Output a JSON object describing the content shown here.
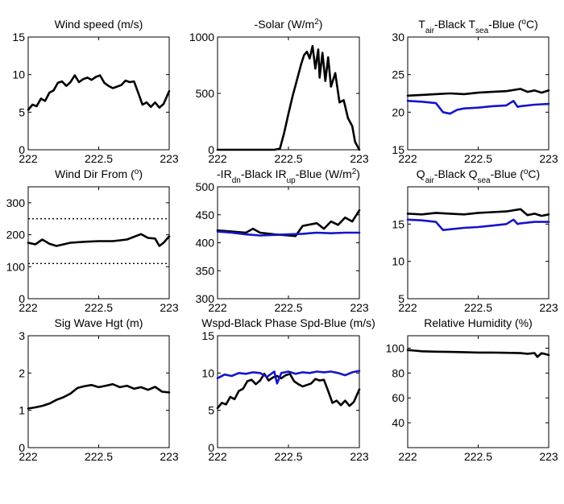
{
  "colors": {
    "black": "#000000",
    "blue": "#1515c8"
  },
  "chart_data": [
    {
      "type": "line",
      "title": "Wind speed (m/s)",
      "xlim": [
        222,
        223
      ],
      "ylim": [
        0,
        15
      ],
      "xticks": [
        "222",
        "222.5",
        "223"
      ],
      "yticks": [
        "0",
        "5",
        "10",
        "15"
      ],
      "series": [
        {
          "color": "black",
          "x": [
            222.0,
            222.03,
            222.06,
            222.09,
            222.12,
            222.15,
            222.18,
            222.21,
            222.24,
            222.27,
            222.3,
            222.33,
            222.36,
            222.39,
            222.42,
            222.45,
            222.48,
            222.51,
            222.54,
            222.57,
            222.6,
            222.63,
            222.66,
            222.69,
            222.72,
            222.75,
            222.78,
            222.81,
            222.84,
            222.87,
            222.9,
            222.93,
            222.96,
            223.0
          ],
          "y": [
            5.3,
            6.0,
            5.8,
            6.8,
            6.5,
            7.6,
            7.9,
            8.9,
            9.1,
            8.5,
            9.0,
            9.9,
            9.0,
            9.4,
            9.6,
            9.3,
            9.7,
            9.9,
            8.9,
            8.5,
            8.2,
            8.4,
            8.6,
            9.2,
            9.0,
            9.1,
            7.6,
            6.0,
            6.3,
            5.7,
            6.3,
            5.6,
            6.1,
            7.8
          ]
        }
      ]
    },
    {
      "type": "line",
      "title": "-Solar (W/m",
      "title_sup": "2",
      "title_tail": ")",
      "xlim": [
        222,
        223
      ],
      "ylim": [
        0,
        1000
      ],
      "xticks": [
        "222",
        "222.5",
        "223"
      ],
      "yticks": [
        "0",
        "500",
        "1000"
      ],
      "series": [
        {
          "color": "black",
          "x": [
            222.0,
            222.3,
            222.4,
            222.44,
            222.47,
            222.5,
            222.53,
            222.56,
            222.59,
            222.61,
            222.63,
            222.65,
            222.67,
            222.69,
            222.71,
            222.72,
            222.74,
            222.76,
            222.78,
            222.8,
            222.83,
            222.86,
            222.89,
            222.92,
            222.95,
            222.97,
            223.0
          ],
          "y": [
            0,
            0,
            0,
            10,
            150,
            320,
            480,
            620,
            760,
            840,
            870,
            810,
            920,
            720,
            890,
            640,
            860,
            610,
            820,
            560,
            680,
            420,
            440,
            280,
            210,
            70,
            0
          ]
        }
      ]
    },
    {
      "type": "line",
      "title": "T",
      "title_parts": [
        "air",
        "-Black  T",
        "sea",
        "-Blue (",
        "o",
        "C)"
      ],
      "xlim": [
        222,
        223
      ],
      "ylim": [
        15,
        30
      ],
      "xticks": [
        "222",
        "222.5",
        "223"
      ],
      "yticks": [
        "15",
        "20",
        "25",
        "30"
      ],
      "series": [
        {
          "color": "black",
          "x": [
            222.0,
            222.1,
            222.2,
            222.3,
            222.4,
            222.5,
            222.6,
            222.7,
            222.8,
            222.85,
            222.9,
            222.95,
            223.0
          ],
          "y": [
            22.2,
            22.3,
            22.4,
            22.5,
            22.4,
            22.6,
            22.7,
            22.8,
            23.1,
            22.7,
            22.9,
            22.6,
            22.9
          ]
        },
        {
          "color": "blue",
          "x": [
            222.0,
            222.1,
            222.2,
            222.25,
            222.3,
            222.35,
            222.4,
            222.5,
            222.6,
            222.7,
            222.75,
            222.78,
            222.8,
            222.9,
            223.0
          ],
          "y": [
            21.5,
            21.4,
            21.2,
            20.0,
            19.8,
            20.3,
            20.5,
            20.6,
            20.8,
            20.9,
            21.5,
            20.7,
            20.8,
            21.0,
            21.1
          ]
        }
      ]
    },
    {
      "type": "line",
      "title": "Wind Dir From (",
      "title_sup": "o",
      "title_tail": ")",
      "xlim": [
        222,
        223
      ],
      "ylim": [
        0,
        350
      ],
      "xticks": [
        "222",
        "222.5",
        "223"
      ],
      "yticks": [
        "0",
        "100",
        "200",
        "300"
      ],
      "reference_lines": [
        250,
        110
      ],
      "series": [
        {
          "color": "black",
          "x": [
            222.0,
            222.05,
            222.1,
            222.15,
            222.2,
            222.3,
            222.4,
            222.5,
            222.6,
            222.7,
            222.8,
            222.85,
            222.9,
            222.93,
            222.96,
            223.0
          ],
          "y": [
            175,
            170,
            185,
            172,
            165,
            175,
            178,
            180,
            180,
            185,
            202,
            190,
            188,
            165,
            175,
            195
          ]
        }
      ]
    },
    {
      "type": "line",
      "title": "-IR",
      "title_parts": [
        "dn",
        "-Black  IR",
        "up",
        "-Blue (W/m",
        "2",
        ")"
      ],
      "xlim": [
        222,
        223
      ],
      "ylim": [
        300,
        500
      ],
      "xticks": [
        "222",
        "222.5",
        "223"
      ],
      "yticks": [
        "300",
        "350",
        "400",
        "450",
        "500"
      ],
      "series": [
        {
          "color": "black",
          "x": [
            222.0,
            222.1,
            222.2,
            222.25,
            222.3,
            222.4,
            222.5,
            222.55,
            222.6,
            222.7,
            222.75,
            222.8,
            222.85,
            222.9,
            222.95,
            223.0
          ],
          "y": [
            422,
            420,
            418,
            425,
            418,
            415,
            413,
            412,
            430,
            435,
            425,
            438,
            432,
            445,
            438,
            458
          ]
        },
        {
          "color": "blue",
          "x": [
            222.0,
            222.1,
            222.2,
            222.3,
            222.4,
            222.5,
            222.6,
            222.7,
            222.8,
            222.9,
            223.0
          ],
          "y": [
            420,
            418,
            415,
            413,
            414,
            415,
            416,
            418,
            417,
            418,
            418
          ]
        }
      ]
    },
    {
      "type": "line",
      "title": "Q",
      "title_parts": [
        "air",
        "-Black  Q",
        "sea",
        "-Blue (",
        "o",
        "C)"
      ],
      "xlim": [
        222,
        223
      ],
      "ylim": [
        5,
        20
      ],
      "xticks": [
        "222",
        "222.5",
        "223"
      ],
      "yticks": [
        "5",
        "10",
        "15"
      ],
      "series": [
        {
          "color": "black",
          "x": [
            222.0,
            222.1,
            222.2,
            222.3,
            222.4,
            222.5,
            222.6,
            222.7,
            222.8,
            222.85,
            222.9,
            222.95,
            223.0
          ],
          "y": [
            16.4,
            16.3,
            16.5,
            16.4,
            16.3,
            16.5,
            16.6,
            16.7,
            17.0,
            16.2,
            16.4,
            16.1,
            16.3
          ]
        },
        {
          "color": "blue",
          "x": [
            222.0,
            222.1,
            222.2,
            222.25,
            222.3,
            222.4,
            222.5,
            222.6,
            222.7,
            222.75,
            222.78,
            222.8,
            222.9,
            223.0
          ],
          "y": [
            15.6,
            15.5,
            15.3,
            14.2,
            14.3,
            14.5,
            14.6,
            14.8,
            15.0,
            15.6,
            15.0,
            15.1,
            15.3,
            15.3
          ]
        }
      ]
    },
    {
      "type": "line",
      "title": "Sig Wave Hgt (m)",
      "xlim": [
        222,
        223
      ],
      "ylim": [
        0,
        3
      ],
      "xticks": [
        "222",
        "222.5",
        "223"
      ],
      "yticks": [
        "0",
        "1",
        "2",
        "3"
      ],
      "series": [
        {
          "color": "black",
          "x": [
            222.0,
            222.05,
            222.1,
            222.15,
            222.2,
            222.25,
            222.3,
            222.35,
            222.4,
            222.45,
            222.5,
            222.55,
            222.6,
            222.65,
            222.7,
            222.75,
            222.8,
            222.85,
            222.9,
            222.95,
            223.0
          ],
          "y": [
            1.05,
            1.08,
            1.12,
            1.18,
            1.28,
            1.35,
            1.45,
            1.6,
            1.65,
            1.68,
            1.62,
            1.66,
            1.7,
            1.62,
            1.66,
            1.58,
            1.62,
            1.55,
            1.63,
            1.5,
            1.48
          ]
        }
      ]
    },
    {
      "type": "line",
      "title": "Wspd-Black  Phase Spd-Blue (m/s)",
      "xlim": [
        222,
        223
      ],
      "ylim": [
        0,
        15
      ],
      "xticks": [
        "222",
        "222.5",
        "223"
      ],
      "yticks": [
        "0",
        "5",
        "10",
        "15"
      ],
      "series": [
        {
          "color": "black",
          "x": [
            222.0,
            222.03,
            222.06,
            222.09,
            222.12,
            222.15,
            222.18,
            222.21,
            222.24,
            222.27,
            222.3,
            222.33,
            222.36,
            222.39,
            222.42,
            222.45,
            222.48,
            222.51,
            222.54,
            222.57,
            222.6,
            222.63,
            222.66,
            222.69,
            222.72,
            222.75,
            222.78,
            222.81,
            222.84,
            222.87,
            222.9,
            222.93,
            222.96,
            223.0
          ],
          "y": [
            5.3,
            6.0,
            5.8,
            6.8,
            6.5,
            7.6,
            7.9,
            8.9,
            9.1,
            8.5,
            9.0,
            9.9,
            9.0,
            9.4,
            9.6,
            9.3,
            9.7,
            9.9,
            8.9,
            8.5,
            8.2,
            8.4,
            8.6,
            9.2,
            9.0,
            9.1,
            7.6,
            6.0,
            6.3,
            5.7,
            6.3,
            5.6,
            6.1,
            7.8
          ]
        },
        {
          "color": "blue",
          "x": [
            222.0,
            222.05,
            222.1,
            222.15,
            222.2,
            222.25,
            222.3,
            222.35,
            222.4,
            222.42,
            222.45,
            222.5,
            222.55,
            222.6,
            222.65,
            222.7,
            222.75,
            222.8,
            222.85,
            222.9,
            222.95,
            223.0
          ],
          "y": [
            9.3,
            9.8,
            9.6,
            10.0,
            9.9,
            10.1,
            10.0,
            9.5,
            10.2,
            8.6,
            10.0,
            10.2,
            9.9,
            10.1,
            10.0,
            10.2,
            10.1,
            10.2,
            10.0,
            9.7,
            10.1,
            10.3
          ]
        }
      ]
    },
    {
      "type": "line",
      "title": "Relative Humidity (%)",
      "xlim": [
        222,
        223
      ],
      "ylim": [
        20,
        110
      ],
      "xticks": [
        "222",
        "222.5",
        "223"
      ],
      "yticks": [
        "40",
        "60",
        "80",
        "100"
      ],
      "series": [
        {
          "color": "black",
          "x": [
            222.0,
            222.05,
            222.1,
            222.2,
            222.3,
            222.4,
            222.5,
            222.6,
            222.7,
            222.8,
            222.85,
            222.9,
            222.92,
            222.95,
            223.0
          ],
          "y": [
            98.5,
            98.0,
            97.5,
            97.2,
            97.0,
            96.8,
            96.5,
            96.5,
            96.3,
            96.0,
            95.5,
            96.0,
            93.0,
            96.0,
            94.5
          ]
        }
      ]
    }
  ]
}
